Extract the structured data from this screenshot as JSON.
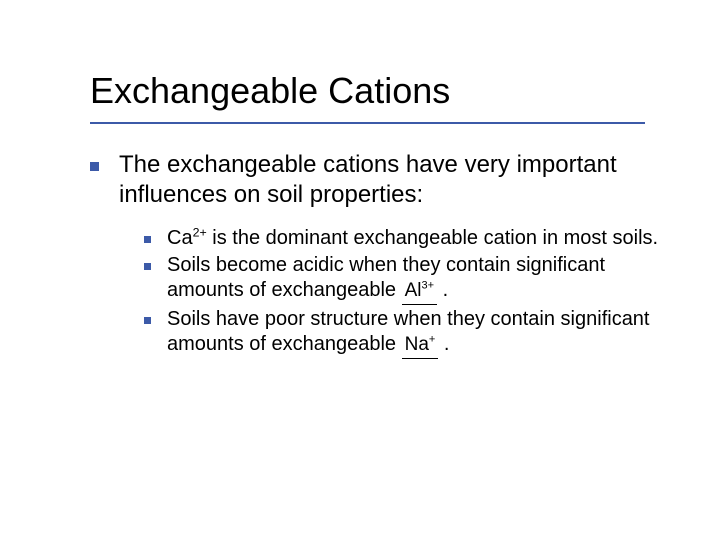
{
  "title": "Exchangeable Cations",
  "intro": "The exchangeable cations have very important influences on soil properties:",
  "items": [
    {
      "pre": "Ca",
      "sup": "2+",
      "post": " is the dominant exchangeable cation in most soils."
    },
    {
      "pre": "Soils become acidic when they contain significant amounts of exchangeable ",
      "blank_pre": "   ",
      "blank_fill": "Al",
      "blank_sup": "3+",
      "blank_post": "  ",
      "post": " ."
    },
    {
      "pre": " Soils have poor structure when they contain significant amounts of exchangeable ",
      "blank_pre": "  ",
      "blank_fill": "Na",
      "blank_sup": "+",
      "blank_post": " ",
      "post": " ."
    }
  ],
  "style": {
    "title_fontsize": 36,
    "body_fontsize": 24,
    "sub_fontsize": 20,
    "bullet_color": "#3c5aa8",
    "underline_color": "#3c5aa8",
    "text_color": "#000000",
    "background": "#ffffff",
    "font_family": "Verdana"
  }
}
